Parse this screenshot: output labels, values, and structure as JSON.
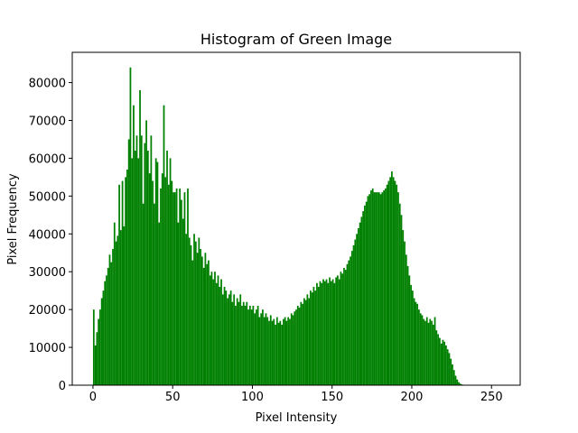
{
  "chart_data": {
    "type": "bar",
    "title": "Histogram of Green Image",
    "xlabel": "Pixel Intensity",
    "ylabel": "Pixel Frequency",
    "xlim": [
      -13,
      268
    ],
    "ylim": [
      0,
      88000
    ],
    "xticks": [
      0,
      50,
      100,
      150,
      200,
      250
    ],
    "yticks": [
      0,
      10000,
      20000,
      30000,
      40000,
      50000,
      60000,
      70000,
      80000
    ],
    "bar_color": "#008000",
    "bins_start": 0,
    "bin_width": 1,
    "values": [
      20000,
      10500,
      14000,
      17500,
      20000,
      23000,
      25000,
      27500,
      29000,
      31000,
      34500,
      32500,
      36000,
      43000,
      38000,
      39500,
      53000,
      41000,
      54000,
      42000,
      55000,
      57000,
      65000,
      84000,
      60000,
      74000,
      62000,
      66000,
      60000,
      78000,
      66000,
      48000,
      64000,
      70000,
      62000,
      56000,
      66000,
      54000,
      48000,
      60000,
      59000,
      43000,
      52000,
      56000,
      74000,
      55000,
      62000,
      53000,
      60000,
      54000,
      51000,
      51000,
      52000,
      43000,
      52000,
      49000,
      44000,
      51000,
      40000,
      52000,
      39000,
      37000,
      33000,
      40000,
      38000,
      35000,
      39000,
      36000,
      34000,
      31000,
      35000,
      32000,
      33000,
      29000,
      30000,
      28000,
      30000,
      27000,
      29000,
      26000,
      28000,
      24000,
      26000,
      25000,
      23000,
      24000,
      25000,
      22000,
      24000,
      21000,
      23000,
      22000,
      24000,
      21000,
      22000,
      21000,
      22000,
      20000,
      21000,
      20000,
      21000,
      19000,
      20000,
      21000,
      18000,
      19000,
      20000,
      18000,
      19000,
      18000,
      17000,
      18500,
      17000,
      17500,
      16000,
      18000,
      16500,
      17000,
      16000,
      17500,
      18000,
      17000,
      18000,
      17500,
      19000,
      18500,
      19500,
      20000,
      21000,
      20500,
      22000,
      21500,
      23000,
      22500,
      24000,
      23000,
      25000,
      24500,
      26000,
      25000,
      27000,
      26000,
      27500,
      27000,
      28000,
      27500,
      28000,
      27000,
      28500,
      27500,
      28000,
      27000,
      28500,
      29000,
      28000,
      30000,
      29500,
      31000,
      30500,
      32000,
      33000,
      34000,
      35500,
      37000,
      38500,
      40000,
      41500,
      43000,
      44500,
      46000,
      47500,
      48500,
      50000,
      50500,
      51500,
      52000,
      51000,
      51000,
      51000,
      51000,
      50500,
      51000,
      51500,
      52000,
      53000,
      54000,
      55000,
      56500,
      55000,
      54000,
      53000,
      51000,
      48000,
      45000,
      41000,
      38000,
      34500,
      31500,
      29000,
      26500,
      25000,
      23000,
      22000,
      21500,
      20000,
      19000,
      18500,
      17500,
      17000,
      18000,
      16500,
      17500,
      17000,
      16000,
      18000,
      14500,
      13500,
      12500,
      11000,
      12000,
      11500,
      10500,
      9500,
      8500,
      7000,
      5500,
      4000,
      2500,
      1500,
      800,
      400,
      200,
      100,
      50,
      0,
      0,
      0,
      0,
      0,
      0,
      0,
      0,
      0,
      0,
      0,
      0,
      0,
      0,
      0,
      0
    ]
  }
}
